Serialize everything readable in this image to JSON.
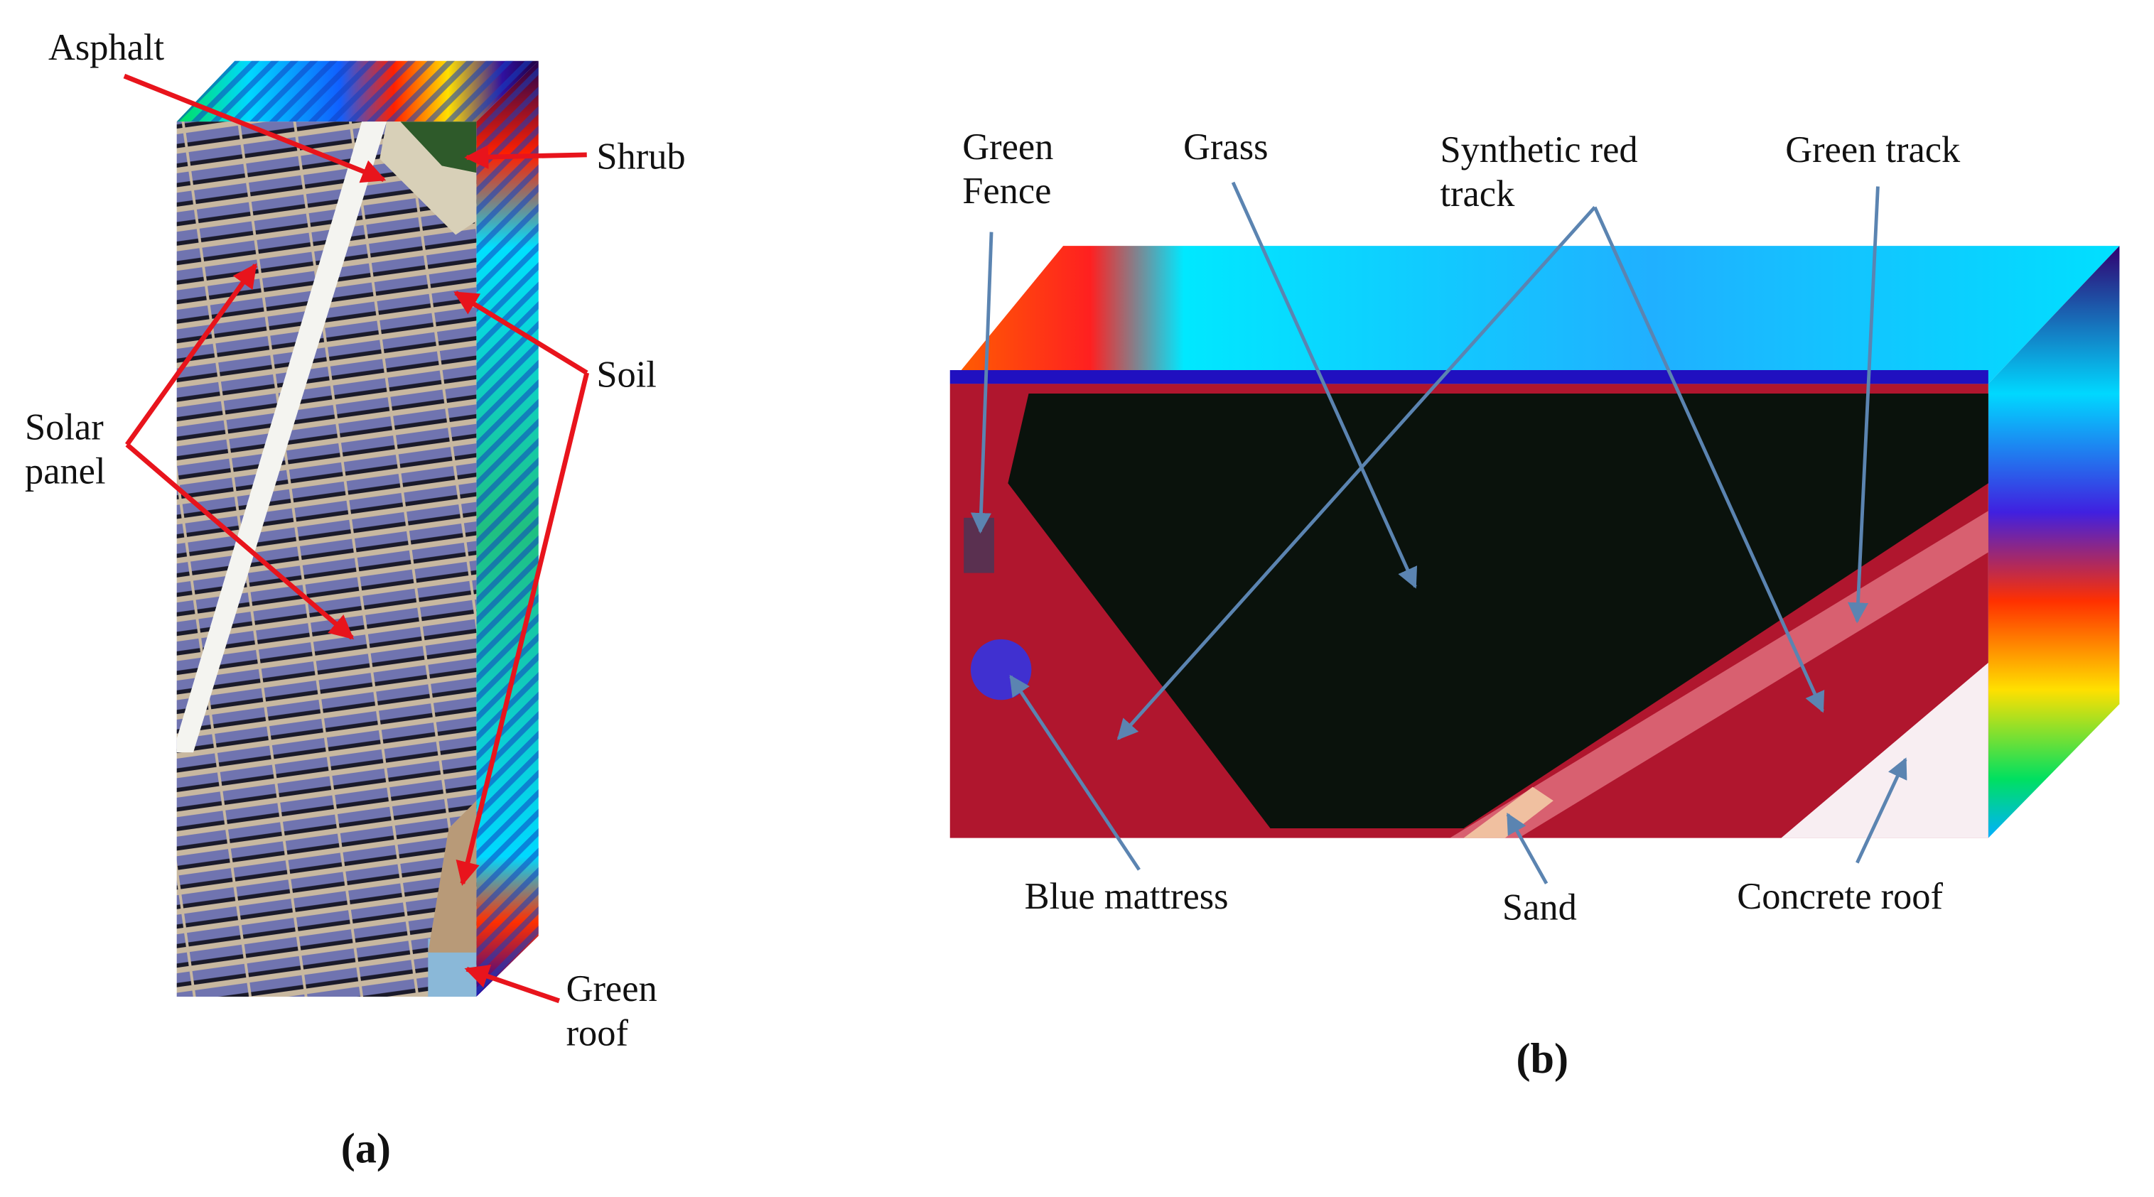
{
  "panel_a": {
    "labels": [
      {
        "lines": [
          "Asphalt"
        ]
      },
      {
        "lines": [
          "Shrub"
        ]
      },
      {
        "lines": [
          "Soil"
        ]
      },
      {
        "lines": [
          "Solar",
          "panel"
        ]
      },
      {
        "lines": [
          "Green",
          "roof"
        ]
      }
    ],
    "caption": "(a)"
  },
  "panel_b": {
    "labels": [
      {
        "lines": [
          "Green",
          "Fence"
        ]
      },
      {
        "lines": [
          "Grass"
        ]
      },
      {
        "lines": [
          "Synthetic red",
          "track"
        ]
      },
      {
        "lines": [
          "Green track"
        ]
      },
      {
        "lines": [
          "Blue mattress"
        ]
      },
      {
        "lines": [
          "Sand"
        ]
      },
      {
        "lines": [
          "Concrete roof"
        ]
      }
    ],
    "caption": "(b)"
  }
}
